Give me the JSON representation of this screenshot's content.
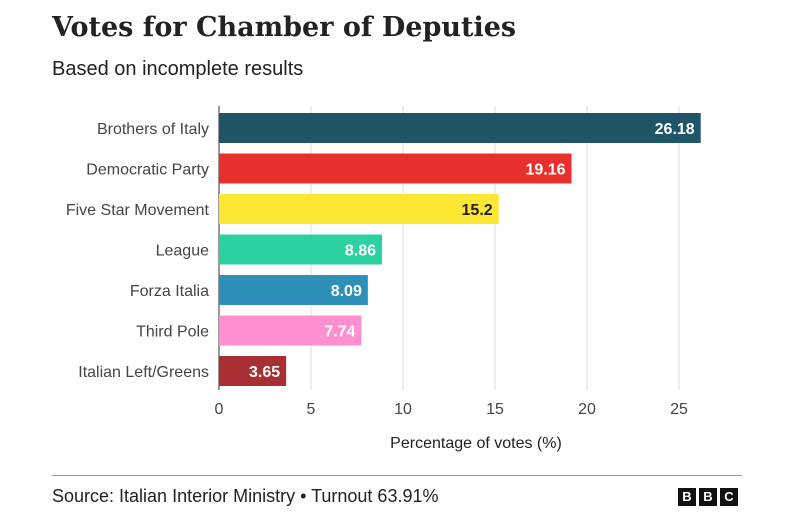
{
  "chart_data": {
    "type": "bar",
    "orientation": "horizontal",
    "title": "Votes for Chamber of Deputies",
    "subtitle": "Based on incomplete results",
    "categories": [
      "Brothers of Italy",
      "Democratic Party",
      "Five Star Movement",
      "League",
      "Forza Italia",
      "Third Pole",
      "Italian Left/Greens"
    ],
    "values": [
      26.18,
      19.16,
      15.2,
      8.86,
      8.09,
      7.74,
      3.65
    ],
    "value_labels": [
      "26.18",
      "19.16",
      "15.2",
      "8.86",
      "8.09",
      "7.74",
      "3.65"
    ],
    "colors": [
      "#1f5566",
      "#e8312e",
      "#fce833",
      "#2bd1a0",
      "#2e8fb8",
      "#ff8fcf",
      "#a83034"
    ],
    "label_colors": [
      "#ffffff",
      "#ffffff",
      "#222222",
      "#ffffff",
      "#ffffff",
      "#ffffff",
      "#ffffff"
    ],
    "xlabel": "Percentage of votes (%)",
    "ylabel": "",
    "xlim": [
      0,
      27
    ],
    "xticks": [
      0,
      5,
      10,
      15,
      20,
      25
    ],
    "xtick_labels": [
      "0",
      "5",
      "10",
      "15",
      "20",
      "25"
    ],
    "grid": "vertical",
    "legend": "none"
  },
  "footer": {
    "source": "Source: Italian Interior Ministry • Turnout 63.91%",
    "logo_letters": [
      "B",
      "B",
      "C"
    ]
  }
}
